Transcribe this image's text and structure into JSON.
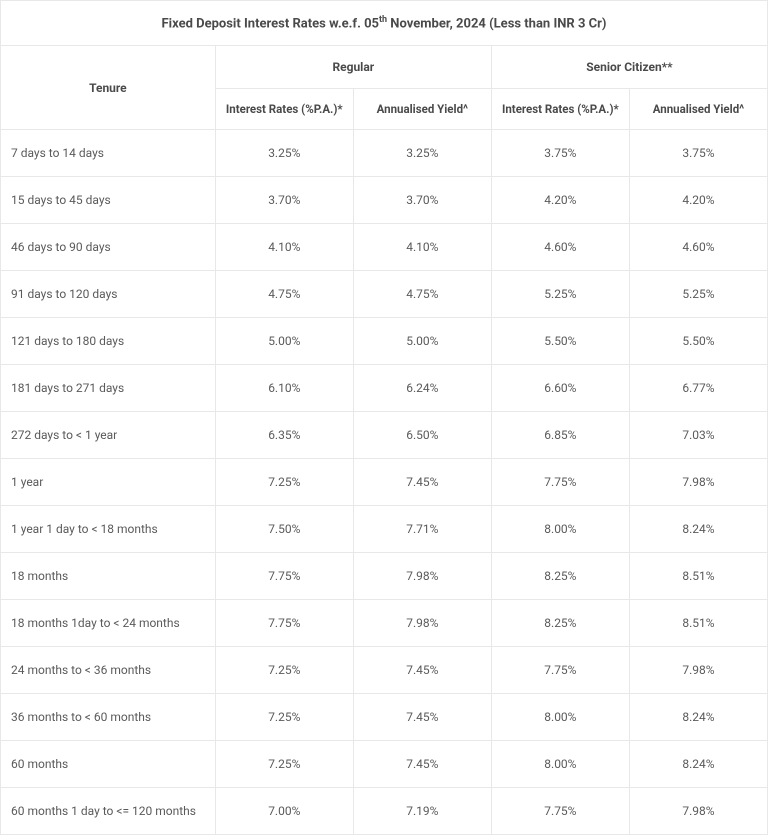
{
  "title_pre": "Fixed Deposit Interest Rates w.e.f. 05",
  "title_sup": "th",
  "title_post": " November, 2024 (Less than INR 3 Cr)",
  "headers": {
    "tenure": "Tenure",
    "regular": "Regular",
    "senior": "Senior Citizen**",
    "rate": "Interest Rates (%P.A.)*",
    "yield": "Annualised Yield^"
  },
  "rows": [
    {
      "tenure": "7 days to 14 days",
      "r_rate": "3.25%",
      "r_yield": "3.25%",
      "s_rate": "3.75%",
      "s_yield": "3.75%"
    },
    {
      "tenure": "15 days to 45 days",
      "r_rate": "3.70%",
      "r_yield": "3.70%",
      "s_rate": "4.20%",
      "s_yield": "4.20%"
    },
    {
      "tenure": "46 days to 90 days",
      "r_rate": "4.10%",
      "r_yield": "4.10%",
      "s_rate": "4.60%",
      "s_yield": "4.60%"
    },
    {
      "tenure": "91 days to 120 days",
      "r_rate": "4.75%",
      "r_yield": "4.75%",
      "s_rate": "5.25%",
      "s_yield": "5.25%"
    },
    {
      "tenure": "121 days to 180 days",
      "r_rate": "5.00%",
      "r_yield": "5.00%",
      "s_rate": "5.50%",
      "s_yield": "5.50%"
    },
    {
      "tenure": "181 days to 271 days",
      "r_rate": "6.10%",
      "r_yield": "6.24%",
      "s_rate": "6.60%",
      "s_yield": "6.77%"
    },
    {
      "tenure": "272 days to < 1 year",
      "r_rate": "6.35%",
      "r_yield": "6.50%",
      "s_rate": "6.85%",
      "s_yield": "7.03%"
    },
    {
      "tenure": "1 year",
      "r_rate": "7.25%",
      "r_yield": "7.45%",
      "s_rate": "7.75%",
      "s_yield": "7.98%"
    },
    {
      "tenure": "1 year 1 day to < 18 months",
      "r_rate": "7.50%",
      "r_yield": "7.71%",
      "s_rate": "8.00%",
      "s_yield": "8.24%"
    },
    {
      "tenure": "18 months",
      "r_rate": "7.75%",
      "r_yield": "7.98%",
      "s_rate": "8.25%",
      "s_yield": "8.51%"
    },
    {
      "tenure": "18 months 1day to < 24 months",
      "r_rate": "7.75%",
      "r_yield": "7.98%",
      "s_rate": "8.25%",
      "s_yield": "8.51%"
    },
    {
      "tenure": "24 months to < 36 months",
      "r_rate": "7.25%",
      "r_yield": "7.45%",
      "s_rate": "7.75%",
      "s_yield": "7.98%"
    },
    {
      "tenure": "36 months  to < 60 months",
      "r_rate": "7.25%",
      "r_yield": "7.45%",
      "s_rate": "8.00%",
      "s_yield": "8.24%"
    },
    {
      "tenure": "60 months",
      "r_rate": "7.25%",
      "r_yield": "7.45%",
      "s_rate": "8.00%",
      "s_yield": "8.24%"
    },
    {
      "tenure": "60 months 1 day to <= 120 months",
      "r_rate": "7.00%",
      "r_yield": "7.19%",
      "s_rate": "7.75%",
      "s_yield": "7.98%"
    }
  ],
  "style": {
    "border_color": "#e8e8e8",
    "text_color": "#5a5a5a",
    "header_color": "#4a4a4a",
    "font_size_body": 12,
    "font_size_title": 13
  }
}
